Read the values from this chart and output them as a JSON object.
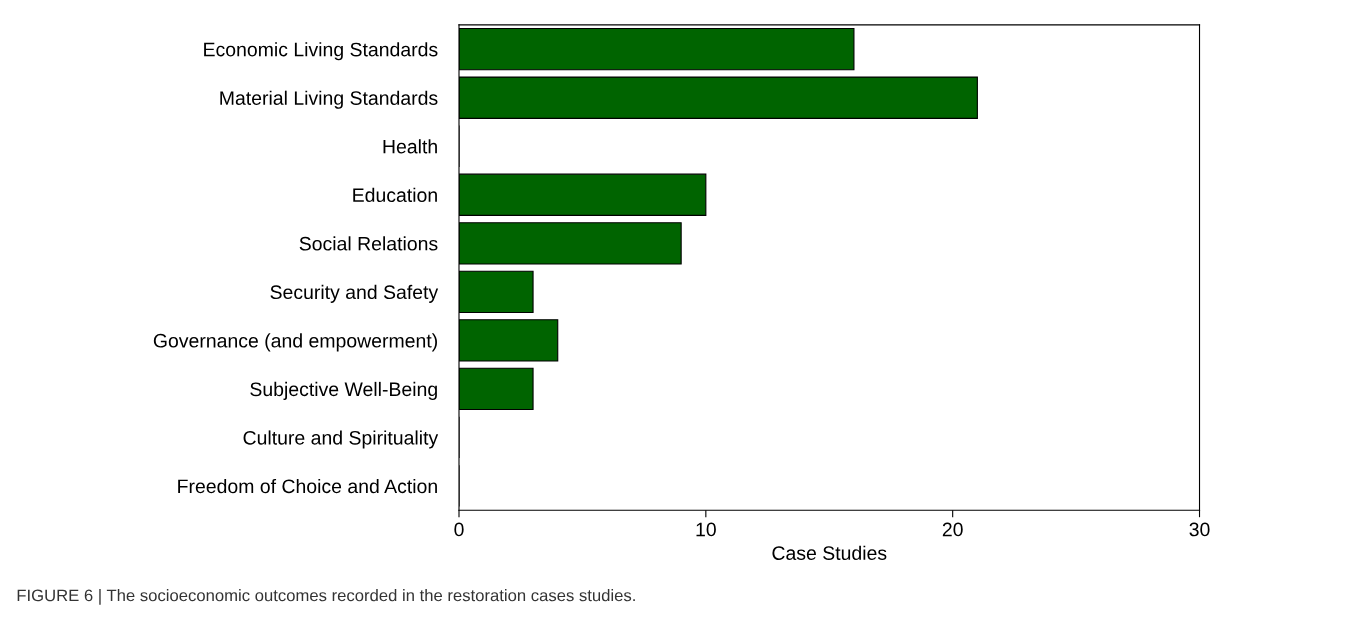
{
  "chart_data": {
    "type": "bar",
    "orientation": "horizontal",
    "categories": [
      "Economic Living Standards",
      "Material Living Standards",
      "Health",
      "Education",
      "Social Relations",
      "Security and Safety",
      "Governance (and empowerment)",
      "Subjective Well-Being",
      "Culture and Spirituality",
      "Freedom of Choice and Action"
    ],
    "values": [
      16,
      21,
      0,
      10,
      9,
      3,
      4,
      3,
      0,
      0
    ],
    "color": "#006400",
    "xlabel": "Case Studies",
    "xlim": [
      0,
      30
    ],
    "xticks": [
      0,
      10,
      20,
      30
    ],
    "grid": false,
    "legend": false,
    "annotations": [
      "FIGURE 6 | The socioeconomic outcomes recorded in the restoration cases studies."
    ]
  }
}
